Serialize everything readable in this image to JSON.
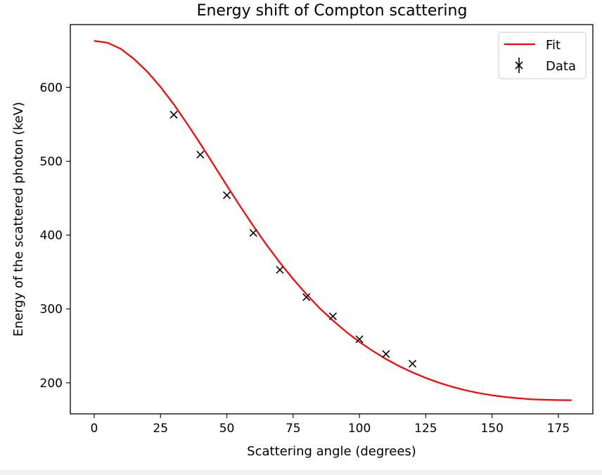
{
  "chart_data": {
    "type": "line",
    "title": "Energy shift of Compton scattering",
    "xlabel": "Scattering angle (degrees)",
    "ylabel": "Energy of the scattered photon (keV)",
    "xlim": [
      -9,
      188
    ],
    "ylim": [
      158,
      685
    ],
    "xticks": [
      0,
      25,
      50,
      75,
      100,
      125,
      150,
      175
    ],
    "yticks": [
      200,
      300,
      400,
      500,
      600
    ],
    "grid": false,
    "legend": {
      "position": "upper right",
      "entries": [
        "Fit",
        "Data"
      ]
    },
    "colors": {
      "fit": "#ff0000",
      "data": "#000000"
    },
    "series": [
      {
        "name": "Fit",
        "style": "line",
        "x": [
          0,
          5,
          10,
          15,
          20,
          25,
          30,
          35,
          40,
          45,
          50,
          55,
          60,
          65,
          70,
          75,
          80,
          85,
          90,
          95,
          100,
          105,
          110,
          115,
          120,
          125,
          130,
          135,
          140,
          145,
          150,
          155,
          160,
          165,
          170,
          175,
          180
        ],
        "y": [
          663,
          660.5,
          652.2,
          638.5,
          621.4,
          600.7,
          577.1,
          551.2,
          523.8,
          495.5,
          467.2,
          439.3,
          412.4,
          386.8,
          362.7,
          340.6,
          320.0,
          301.1,
          284.3,
          269.1,
          255.4,
          243.2,
          232.3,
          222.6,
          214.1,
          206.7,
          200.1,
          194.6,
          190.0,
          186.2,
          183.1,
          180.8,
          179.0,
          177.7,
          177.0,
          176.6,
          176.5
        ]
      },
      {
        "name": "Data",
        "style": "markers",
        "marker": "x",
        "x": [
          30,
          40,
          50,
          60,
          70,
          80,
          90,
          100,
          110,
          120
        ],
        "y": [
          563,
          509,
          454,
          403,
          353,
          316,
          290,
          259,
          239,
          226
        ]
      }
    ]
  }
}
